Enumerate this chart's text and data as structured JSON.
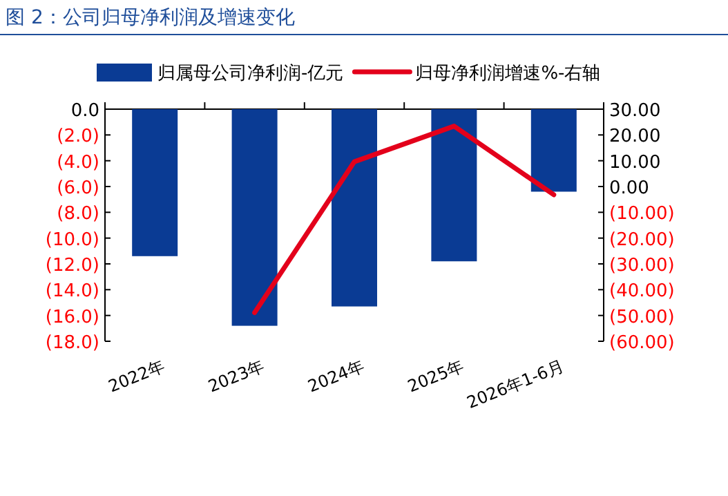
{
  "chart_data": {
    "type": "bar",
    "title": "图 2：公司归母净利润及增速变化",
    "categories": [
      "2022年",
      "2023年",
      "2024年",
      "2025年",
      "2026年1-6月"
    ],
    "series": [
      {
        "name": "归属母公司净利润-亿元",
        "color": "#0a3b94",
        "values": [
          -11.4,
          -16.8,
          -15.3,
          -11.8,
          -6.4
        ]
      },
      {
        "name": "归母净利润增速%-右轴",
        "color": "#e3001b",
        "type": "line",
        "axis": "y2",
        "values": [
          null,
          -48.9,
          9.6,
          23.4,
          -3.2
        ]
      }
    ],
    "ylim": [
      -18,
      0
    ],
    "yticks": [
      {
        "value": 0,
        "label": "0.0"
      },
      {
        "value": -2,
        "label": "(2.0)"
      },
      {
        "value": -4,
        "label": "(4.0)"
      },
      {
        "value": -6,
        "label": "(6.0)"
      },
      {
        "value": -8,
        "label": "(8.0)"
      },
      {
        "value": -10,
        "label": "(10.0)"
      },
      {
        "value": -12,
        "label": "(12.0)"
      },
      {
        "value": -14,
        "label": "(14.0)"
      },
      {
        "value": -16,
        "label": "(16.0)"
      },
      {
        "value": -18,
        "label": "(18.0)"
      }
    ],
    "y2lim": [
      -60,
      30
    ],
    "y2ticks": [
      {
        "value": 30,
        "label": "30.00"
      },
      {
        "value": 20,
        "label": "20.00"
      },
      {
        "value": 10,
        "label": "10.00"
      },
      {
        "value": 0,
        "label": "0.00"
      },
      {
        "value": -10,
        "label": "(10.00)"
      },
      {
        "value": -20,
        "label": "(20.00)"
      },
      {
        "value": -30,
        "label": "(30.00)"
      },
      {
        "value": -40,
        "label": "(40.00)"
      },
      {
        "value": -50,
        "label": "(50.00)"
      },
      {
        "value": -60,
        "label": "(60.00)"
      }
    ],
    "legend": "top"
  }
}
